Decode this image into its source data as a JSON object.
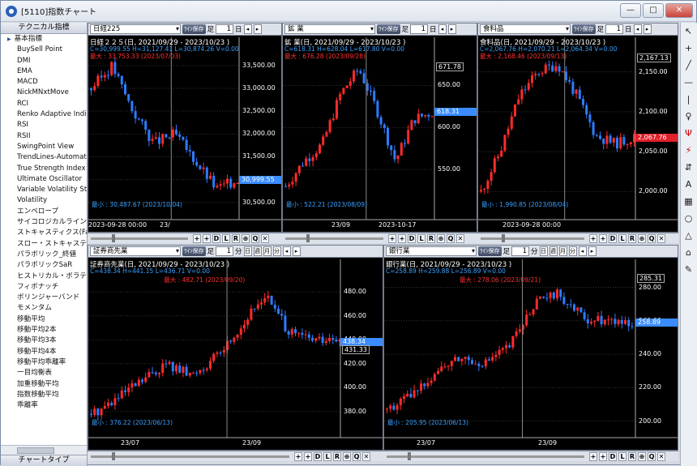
{
  "window": {
    "title": "[5110]指数チャート",
    "buttons": [
      "—",
      "□",
      "✕"
    ]
  },
  "left": {
    "header": "テクニカル指標",
    "footer": "チャートタイプ",
    "items": [
      "基本指標",
      "BuySell Point",
      "DMI",
      "EMA",
      "MACD",
      "NickMNxtMove",
      "RCI",
      "Renko Adaptive Indicator",
      "RSI",
      "RSII",
      "SwingPoint View",
      "TrendLines-Automatic",
      "True Strength Index",
      "Ultimate Oscillator",
      "Variable Volatility Stop",
      "Volatility",
      "エンベロープ",
      "サイコロジカルライン",
      "ストキャスティクス(Fast)",
      "スロー・ストキャスティクス",
      "パラボリック_終値",
      "パラボリックSaR",
      "ヒストリカル・ボラティリティ",
      "フィボナッチ",
      "ボリンジャーバンド",
      "モメンタム",
      "移動平均",
      "移動平均2本",
      "移動平均3本",
      "移動平均4本",
      "移動平均乖離率",
      "一目均衡表",
      "加重移動平均",
      "指数移動平均",
      "乖離率"
    ]
  },
  "righttools": [
    "↖",
    "+",
    "╱",
    "—",
    "|",
    "♀",
    "Ψ",
    "⚡",
    "⇵",
    "A",
    "▦",
    "○",
    "△",
    "⌂",
    "✎"
  ],
  "toolbar": {
    "line_btn": "ﾗｲﾝ保存",
    "step": "足",
    "step_val": "1",
    "unit_day": "日",
    "unit_min": "分",
    "week": "週",
    "month": "月",
    "book": "本"
  },
  "bottom": {
    "btns": [
      "+",
      "+",
      "D",
      "L",
      "R",
      "⊕",
      "Q",
      "✕"
    ]
  },
  "panes": [
    {
      "sel": "日経225",
      "title": "日経２２５(日, 2021/09/29 - 2023/10/23 )",
      "stats": "C=30,999.55 H=31,127.41 L=30,874.26 V=0.00",
      "max": "最大 : 33,753.33 (2023/07/03)",
      "min": "最小 : 30,487.67 (2023/10/04)",
      "yticks": [
        "33,500.00",
        "33,000.00",
        "32,500.00",
        "32,000.00",
        "31,500.00",
        "31,000.00",
        "30,500.00"
      ],
      "xticks": [
        "23/",
        "2023-09-28  00:00"
      ],
      "cur": "30,999.55"
    },
    {
      "sel": "鉱  業",
      "title": "鉱  業(日, 2021/09/29 - 2023/10/23 )",
      "stats": "C=618.31 H=628.04 L=617.80 V=0.00",
      "max": "最大 : 676.28 (2023/09/28)",
      "min": "最小 : 522.21 (2023/08/09)",
      "yticks": [
        "650.00",
        "600.00",
        "550.00"
      ],
      "xticks": [
        "23/09",
        "2023-10-17"
      ],
      "cur": "618.31",
      "tag": "671.78"
    },
    {
      "sel": "食料品",
      "title": "食料品(日, 2021/09/29 - 2023/10/23 )",
      "stats": "C=2,067.76 H=2,070.21 L=2,064.34 V=0.00",
      "max": "最大 : 2,168.46 (2023/09/13)",
      "min": "最小 : 1,990.85 (2023/08/04)",
      "yticks": [
        "2,150.00",
        "2,100.00",
        "2,050.00",
        "2,000.00"
      ],
      "xticks": [
        "2023-09-28  00:00"
      ],
      "cur": "2,067.76",
      "tag": "2,167.13"
    },
    {
      "sel": "証券商先業",
      "title": "証券商先業(日, 2021/09/29 - 2023/10/23 )",
      "stats": "C=438.34 H=441.15 L=436.71 V=0.00",
      "max": "最大 : 482.71 (2023/09/20)",
      "min": "最小 : 376.22 (2023/06/13)",
      "yticks": [
        "480.00",
        "460.00",
        "440.00",
        "420.00",
        "400.00",
        "380.00"
      ],
      "xticks": [
        "23/07",
        "23/09"
      ],
      "cur": "438.34",
      "tag": "431.33"
    },
    {
      "sel": "銀行業",
      "title": "銀行業(日, 2021/09/29 - 2023/10/23 )",
      "stats": "C=258.89 H=259.88 L=256.89 V=0.00",
      "max": "最大 : 278.06 (2023/09/21)",
      "min": "最小 : 205.95 (2023/06/13)",
      "yticks": [
        "280.00",
        "260.00",
        "240.00",
        "220.00",
        "200.00"
      ],
      "xticks": [
        "23/07",
        "23/09"
      ],
      "cur": "258.89",
      "tag": "285.31"
    }
  ]
}
